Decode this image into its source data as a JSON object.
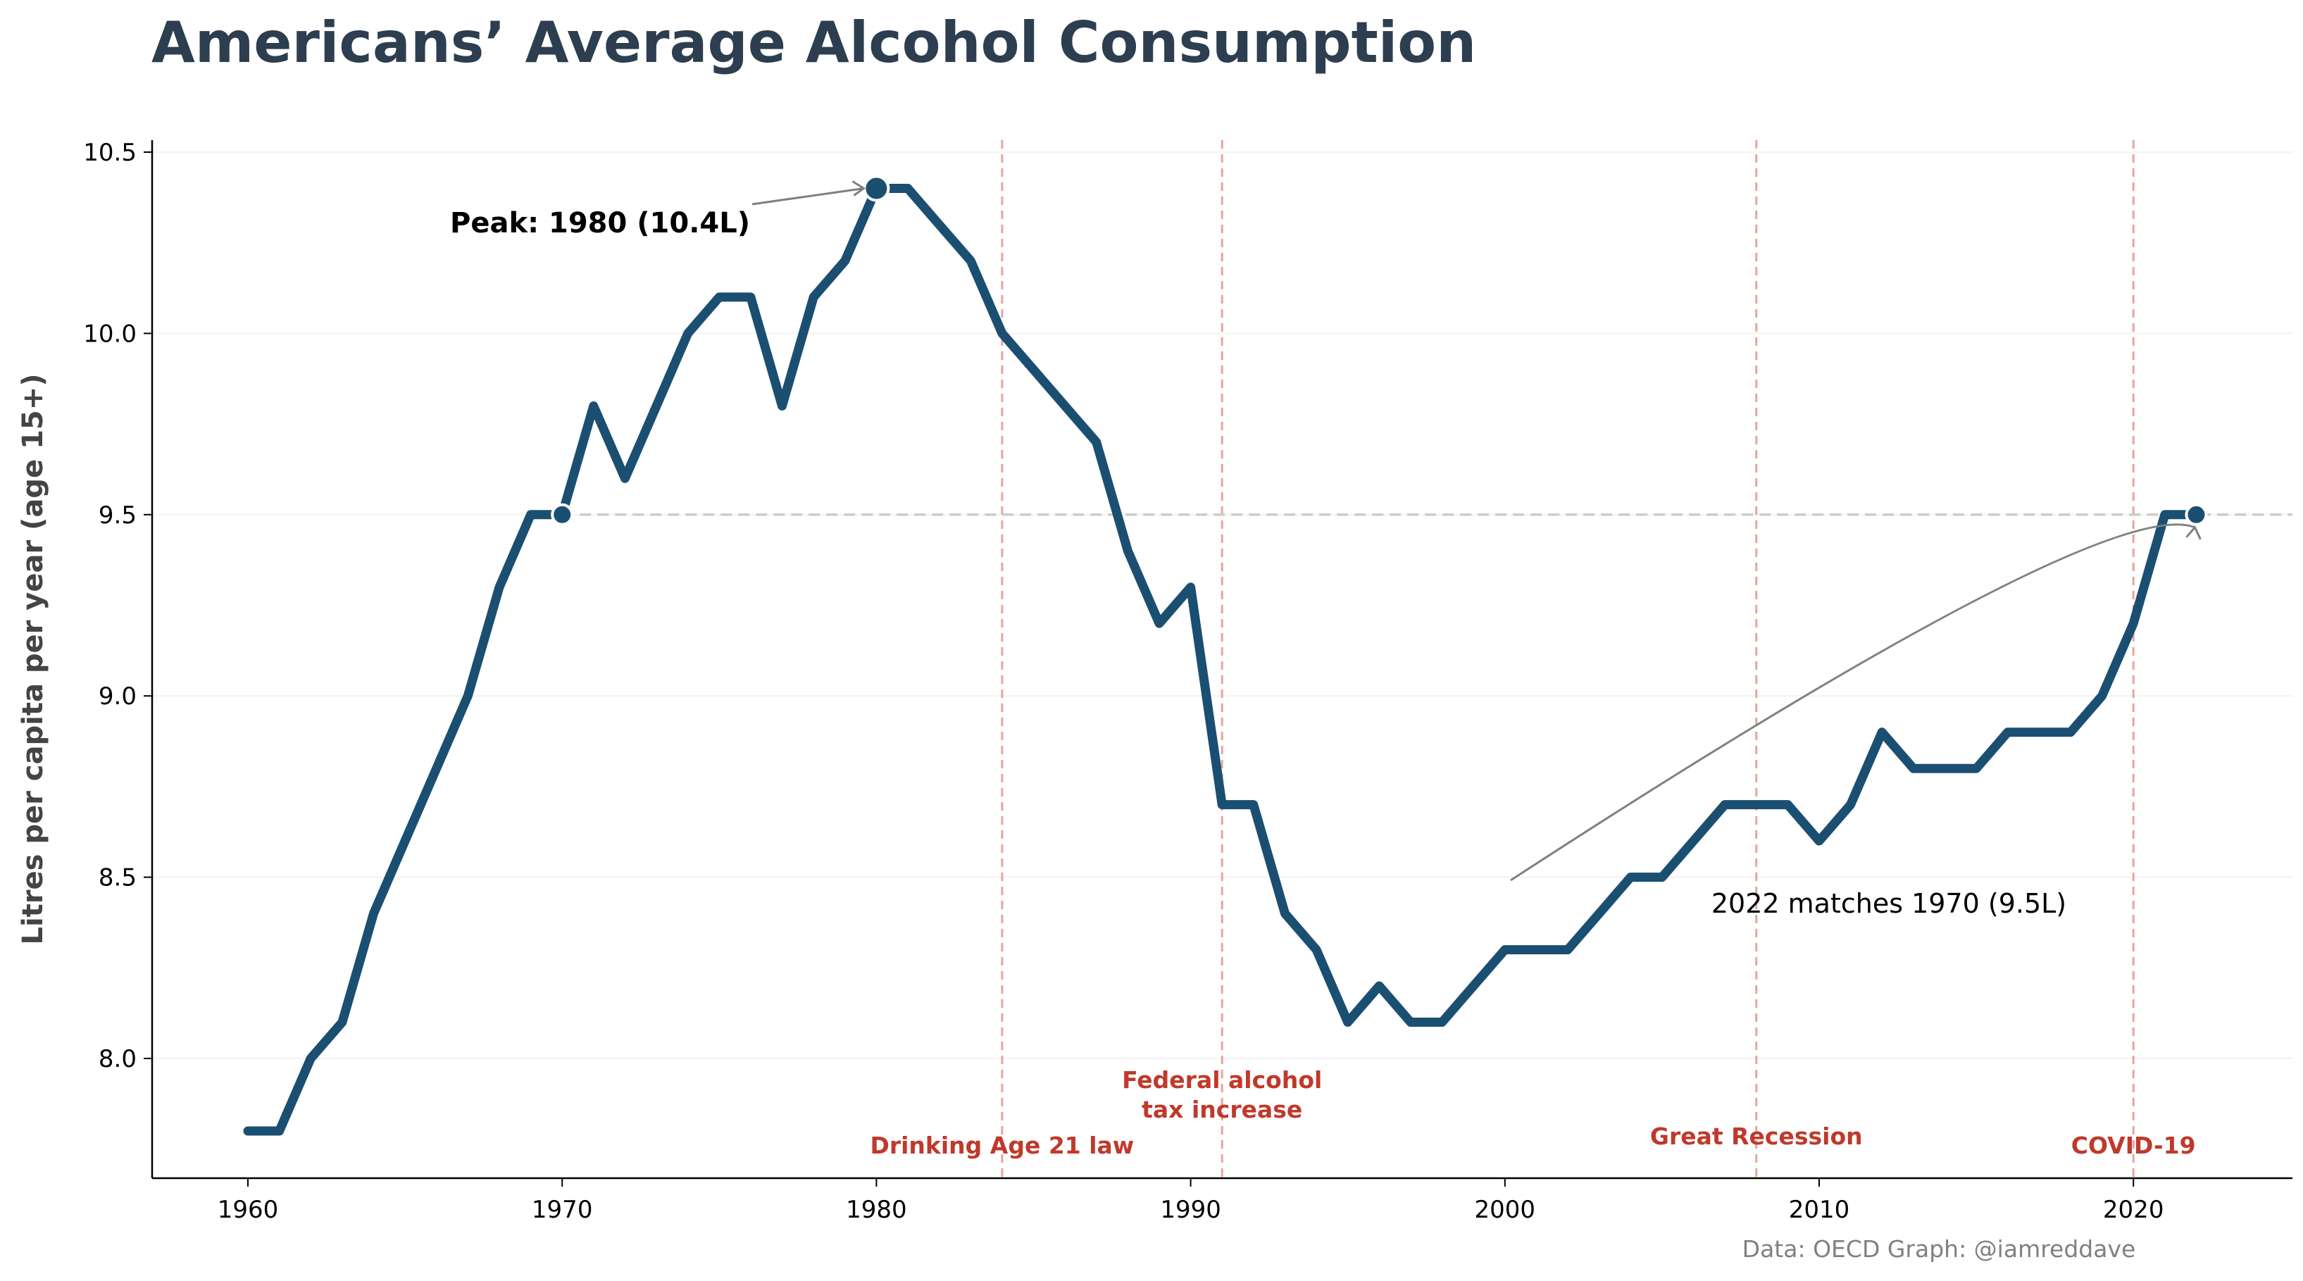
{
  "chart_data": {
    "type": "line",
    "title": "Americans’ Average Alcohol Consumption",
    "xlabel": "",
    "ylabel": "Litres per capita per year (age 15+)",
    "xlim": [
      1957,
      2025
    ],
    "ylim": [
      7.67,
      10.53
    ],
    "x_ticks": [
      1960,
      1970,
      1980,
      1990,
      2000,
      2010,
      2020
    ],
    "y_ticks": [
      8.0,
      8.5,
      9.0,
      9.5,
      10.0,
      10.5
    ],
    "y_tick_labels": [
      "8.0",
      "8.5",
      "9.0",
      "9.5",
      "10.0",
      "10.5"
    ],
    "grid": "horizontal, faint",
    "line_color": "#1b4f72",
    "series": [
      {
        "x": [
          1960,
          1961,
          1962,
          1963,
          1964,
          1965,
          1966,
          1967,
          1968,
          1969,
          1970,
          1971,
          1972,
          1973,
          1974,
          1975,
          1976,
          1977,
          1978,
          1979,
          1980,
          1981,
          1982,
          1983,
          1984,
          1985,
          1986,
          1987,
          1988,
          1989,
          1990,
          1991,
          1992,
          1993,
          1994,
          1995,
          1996,
          1997,
          1998,
          1999,
          2000,
          2001,
          2002,
          2003,
          2004,
          2005,
          2006,
          2007,
          2008,
          2009,
          2010,
          2011,
          2012,
          2013,
          2014,
          2015,
          2016,
          2017,
          2018,
          2019,
          2020,
          2021,
          2022
        ],
        "values": [
          7.8,
          7.8,
          8.0,
          8.1,
          8.4,
          8.6,
          8.8,
          9.0,
          9.3,
          9.5,
          9.5,
          9.8,
          9.6,
          9.8,
          10.0,
          10.1,
          10.1,
          9.8,
          10.1,
          10.2,
          10.4,
          10.4,
          10.3,
          10.2,
          10.0,
          9.9,
          9.8,
          9.7,
          9.4,
          9.2,
          9.3,
          8.7,
          8.7,
          8.4,
          8.3,
          8.1,
          8.2,
          8.1,
          8.1,
          8.2,
          8.3,
          8.3,
          8.3,
          8.4,
          8.5,
          8.5,
          8.6,
          8.7,
          8.7,
          8.7,
          8.6,
          8.7,
          8.9,
          8.8,
          8.8,
          8.8,
          8.9,
          8.9,
          8.9,
          9.0,
          9.2,
          9.5,
          9.5
        ]
      }
    ],
    "highlight_points": [
      {
        "x": 1970,
        "y": 9.5
      },
      {
        "x": 1980,
        "y": 10.4
      },
      {
        "x": 2022,
        "y": 9.5
      }
    ],
    "reference_line": {
      "y": 9.5,
      "from_x": 1970,
      "style": "dashed",
      "color": "#cccccc"
    },
    "events": [
      {
        "x": 1984,
        "label": [
          "Drinking Age 21 law"
        ]
      },
      {
        "x": 1991,
        "label": [
          "Federal alcohol",
          "tax increase"
        ]
      },
      {
        "x": 2008,
        "label": [
          "Great Recession"
        ]
      },
      {
        "x": 2020,
        "label": [
          "COVID-19"
        ]
      }
    ],
    "event_color": "#c0392b",
    "annotations": [
      {
        "text": "Peak: 1980 (10.4L)",
        "points_to": {
          "x": 1980,
          "y": 10.4
        },
        "bold": true
      },
      {
        "text": "2022 matches 1970 (9.5L)",
        "points_to": {
          "x": 2022,
          "y": 9.5
        },
        "bold": false
      }
    ],
    "source": "Data: OECD Graph: @iamreddave"
  }
}
